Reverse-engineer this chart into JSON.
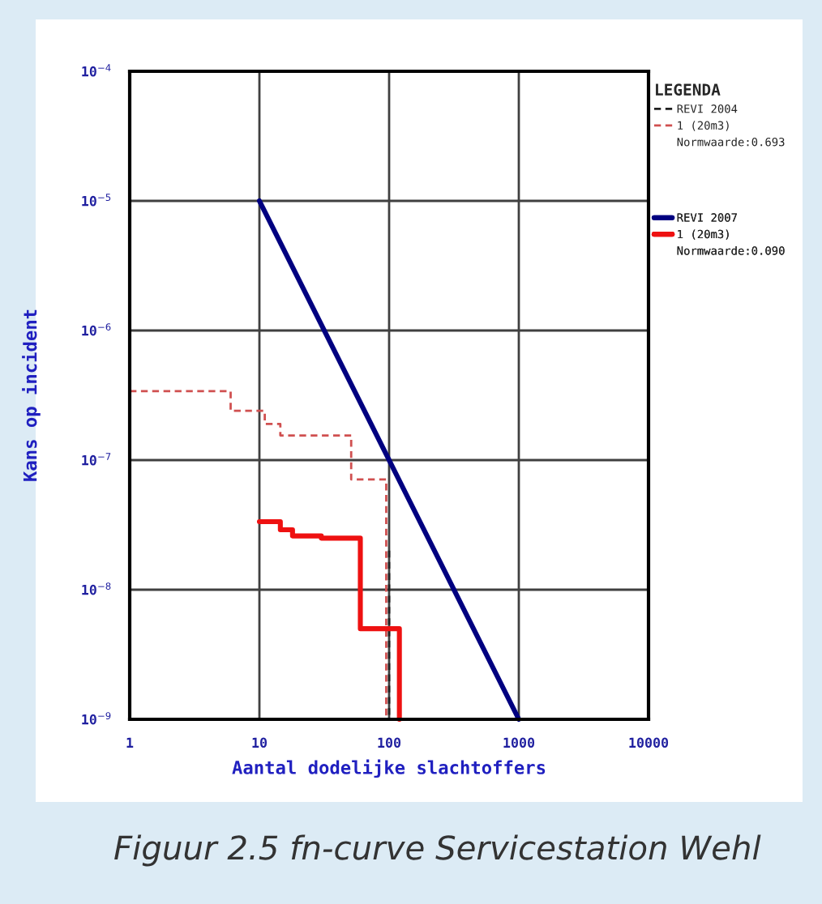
{
  "chart_data": {
    "type": "step",
    "xlabel": "Aantal dodelijke slachtoffers",
    "ylabel": "Kans op incident",
    "legend_title": "LEGENDA",
    "log": "xy",
    "grid": true,
    "legend": "right",
    "xlim": [
      1,
      10000
    ],
    "xticks": [
      1,
      10,
      100,
      1000,
      10000
    ],
    "ylim": [
      1e-09,
      0.0001
    ],
    "yticks": [
      {
        "value": 1e-09,
        "label": "10$^{−9}$"
      },
      {
        "value": 1e-08,
        "label": "10$^{−8}$"
      },
      {
        "value": 1e-07,
        "label": "10$^{−7}$"
      },
      {
        "value": 1e-06,
        "label": "10$^{−6}$"
      },
      {
        "value": 1e-05,
        "label": "10$^{−5}$"
      },
      {
        "value": 0.0001,
        "label": "10$^{−4}$"
      }
    ],
    "series": [
      {
        "name": "REVI 2004",
        "color": "#202020",
        "line_style": "dashed",
        "x": [
          100,
          100
        ],
        "values": [
          2e-08,
          1e-09
        ]
      },
      {
        "name": "1 (20m3)",
        "color": "#d05050",
        "line_style": "dashed",
        "x": [
          1,
          6,
          11,
          14.5,
          51,
          95,
          95
        ],
        "values": [
          3.4e-07,
          2.4e-07,
          1.9e-07,
          1.55e-07,
          7.1e-08,
          7.1e-08,
          1e-09
        ]
      },
      {
        "name": "REVI 2007",
        "color": "#000080",
        "line_style": "solid",
        "type": "line",
        "x": [
          10,
          1000
        ],
        "values": [
          1e-05,
          1e-09
        ]
      },
      {
        "name": "1 (20m3)",
        "color": "#ee1111",
        "line_style": "solid",
        "x": [
          10,
          14.5,
          18,
          30,
          60,
          120,
          120
        ],
        "values": [
          3.35e-08,
          2.9e-08,
          2.6e-08,
          2.5e-08,
          5e-09,
          5e-09,
          1e-09
        ]
      }
    ],
    "annotations": [
      "Normwaarde:0.693",
      "Normwaarde:0.090",
      "Figuur 2.5 fn-curve Servicestation Wehl"
    ]
  }
}
